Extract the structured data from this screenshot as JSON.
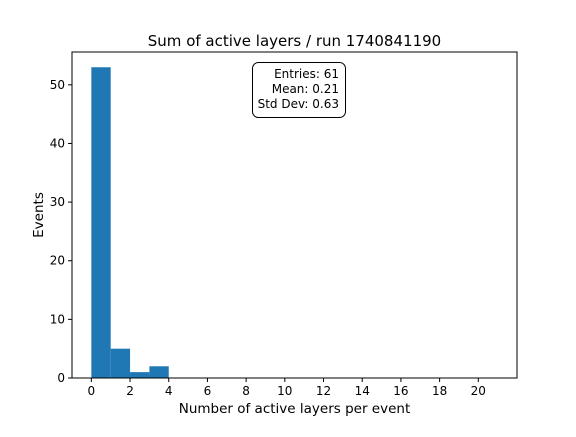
{
  "chart_data": {
    "type": "bar",
    "title": "Sum of active layers / run 1740841190",
    "xlabel": "Number of active layers per event",
    "ylabel": "Events",
    "bin_width": 1,
    "bins": [
      {
        "x0": 0,
        "value": 53
      },
      {
        "x0": 1,
        "value": 5
      },
      {
        "x0": 2,
        "value": 1
      },
      {
        "x0": 3,
        "value": 2
      }
    ],
    "xlim": [
      -1,
      22
    ],
    "ylim": [
      0,
      55.6
    ],
    "xticks": [
      0,
      2,
      4,
      6,
      8,
      10,
      12,
      14,
      16,
      18,
      20
    ],
    "yticks": [
      0,
      10,
      20,
      30,
      40,
      50
    ],
    "bar_color": "#1f77b4",
    "grid": false,
    "stats_box": {
      "placement": "top-center",
      "entries": "Entries: 61",
      "mean": "Mean: 0.21",
      "std": "Std Dev: 0.63"
    }
  }
}
